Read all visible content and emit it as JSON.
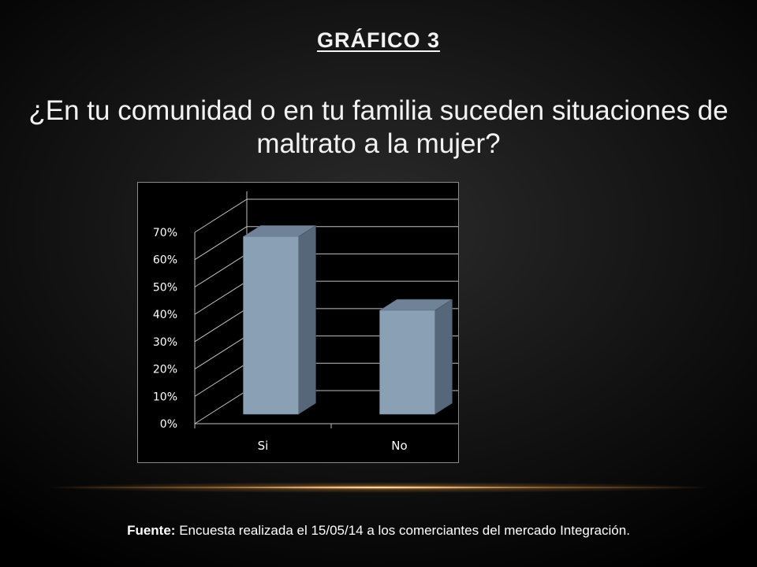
{
  "slide": {
    "heading": "GRÁFICO 3",
    "question": "¿En tu comunidad o en tu familia suceden situaciones de maltrato a la mujer?",
    "source_label": "Fuente:",
    "source_text": " Encuesta realizada el 15/05/14 a los comerciantes del mercado Integración."
  },
  "chart_data": {
    "type": "bar",
    "categories": [
      "Si",
      "No"
    ],
    "values": [
      65,
      38
    ],
    "ylim": [
      0,
      70
    ],
    "yticks": [
      "0%",
      "10%",
      "20%",
      "30%",
      "40%",
      "50%",
      "60%",
      "70%"
    ],
    "title": "",
    "xlabel": "",
    "ylabel": "",
    "grid": true,
    "legend": "none",
    "colors": {
      "bar_front": "#8aa0b5",
      "bar_side": "#56677a",
      "bar_top": "#6f8297",
      "axis": "#bfbfbf",
      "tick_text": "#ffffff"
    }
  }
}
